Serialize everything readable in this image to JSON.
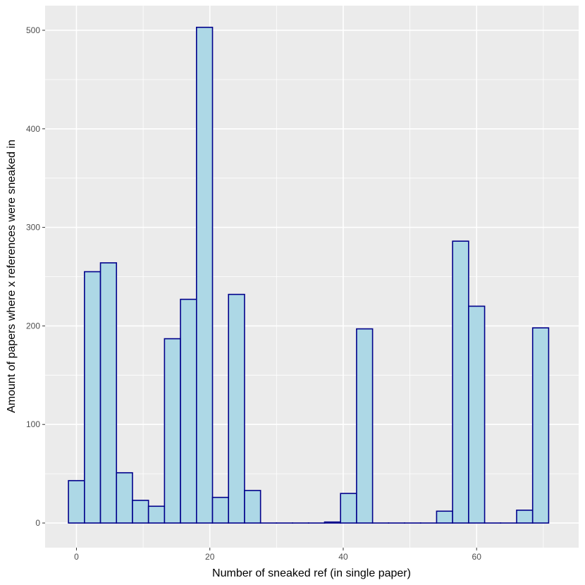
{
  "chart_data": {
    "type": "bar",
    "title": "",
    "xlabel": "Number of sneaked ref (in single paper)",
    "ylabel": "Amount of papers where x references were sneaked in",
    "bin_width": 2.4,
    "x_ticks": [
      0,
      20,
      40,
      60
    ],
    "y_ticks": [
      0,
      100,
      200,
      300,
      400,
      500
    ],
    "xlim": [
      -4.7,
      75.3
    ],
    "ylim": [
      -25,
      525
    ],
    "grid": true,
    "legend": "none",
    "colors": {
      "panel_background": "#EBEBEB",
      "grid": "#FFFFFF",
      "bar_fill": "#ADD8E6",
      "bar_outline": "#00008B"
    },
    "bins": [
      {
        "x": 0.0,
        "value": 43
      },
      {
        "x": 2.4,
        "value": 255
      },
      {
        "x": 4.8,
        "value": 264
      },
      {
        "x": 7.2,
        "value": 51
      },
      {
        "x": 9.6,
        "value": 23
      },
      {
        "x": 12.0,
        "value": 17
      },
      {
        "x": 14.4,
        "value": 187
      },
      {
        "x": 16.8,
        "value": 227
      },
      {
        "x": 19.2,
        "value": 503
      },
      {
        "x": 21.6,
        "value": 26
      },
      {
        "x": 24.0,
        "value": 232
      },
      {
        "x": 26.4,
        "value": 33
      },
      {
        "x": 28.8,
        "value": 0
      },
      {
        "x": 31.2,
        "value": 0
      },
      {
        "x": 33.6,
        "value": 0
      },
      {
        "x": 36.0,
        "value": 0
      },
      {
        "x": 38.4,
        "value": 1
      },
      {
        "x": 40.8,
        "value": 30
      },
      {
        "x": 43.2,
        "value": 197
      },
      {
        "x": 45.6,
        "value": 0
      },
      {
        "x": 48.0,
        "value": 0
      },
      {
        "x": 50.4,
        "value": 0
      },
      {
        "x": 52.8,
        "value": 0
      },
      {
        "x": 55.2,
        "value": 12
      },
      {
        "x": 57.6,
        "value": 286
      },
      {
        "x": 60.0,
        "value": 220
      },
      {
        "x": 62.4,
        "value": 0
      },
      {
        "x": 64.8,
        "value": 0
      },
      {
        "x": 67.2,
        "value": 13
      },
      {
        "x": 69.6,
        "value": 198
      }
    ]
  }
}
